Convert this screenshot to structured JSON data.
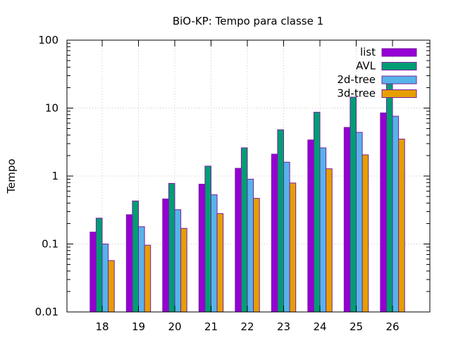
{
  "chart_data": {
    "type": "bar",
    "title": "BiO-KP: Tempo para classe 1",
    "xlabel": "",
    "ylabel": "Tempo",
    "yscale": "log",
    "ylim": [
      0.01,
      100
    ],
    "yticks": [
      "0.01",
      "0.1",
      "1",
      "10",
      "100"
    ],
    "grid": true,
    "legend_position": "top-right",
    "categories": [
      "18",
      "19",
      "20",
      "21",
      "22",
      "23",
      "24",
      "25",
      "26"
    ],
    "series": [
      {
        "name": "list",
        "color": "#9400d3",
        "values": [
          0.15,
          0.27,
          0.46,
          0.76,
          1.3,
          2.1,
          3.4,
          5.2,
          8.5
        ]
      },
      {
        "name": "AVL",
        "color": "#009e73",
        "values": [
          0.24,
          0.43,
          0.78,
          1.4,
          2.6,
          4.8,
          8.7,
          14.5,
          25
        ]
      },
      {
        "name": "2d-tree",
        "color": "#56b4e9",
        "values": [
          0.1,
          0.18,
          0.32,
          0.53,
          0.9,
          1.6,
          2.6,
          4.4,
          7.6
        ]
      },
      {
        "name": "3d-tree",
        "color": "#e69f00",
        "values": [
          0.057,
          0.096,
          0.17,
          0.28,
          0.47,
          0.79,
          1.28,
          2.05,
          3.5
        ]
      }
    ]
  }
}
